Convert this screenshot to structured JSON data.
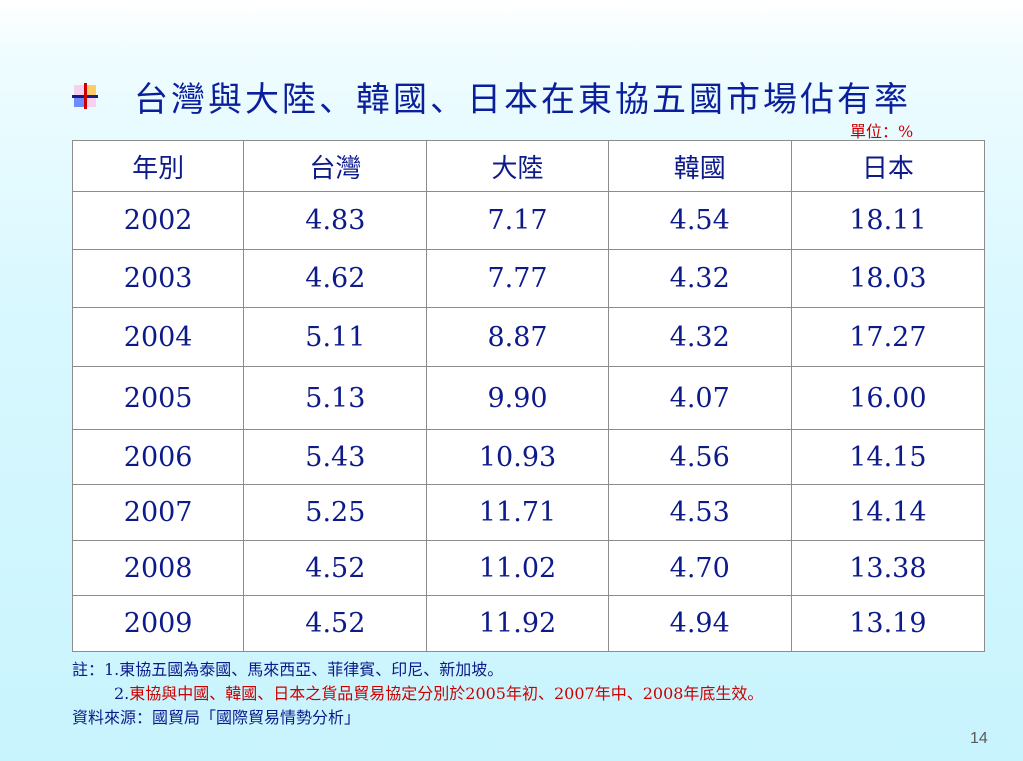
{
  "title": "台灣與大陸、韓國、日本在東協五國市場佔有率",
  "unit": "單位：%",
  "table": {
    "headers": [
      "年別",
      "台灣",
      "大陸",
      "韓國",
      "日本"
    ],
    "rows": [
      [
        "2002",
        "4.83",
        "7.17",
        "4.54",
        "18.11"
      ],
      [
        "2003",
        "4.62",
        "7.77",
        "4.32",
        "18.03"
      ],
      [
        "2004",
        "5.11",
        "8.87",
        "4.32",
        "17.27"
      ],
      [
        "2005",
        "5.13",
        "9.90",
        "4.07",
        "16.00"
      ],
      [
        "2006",
        "5.43",
        "10.93",
        "4.56",
        "14.15"
      ],
      [
        "2007",
        "5.25",
        "11.71",
        "4.53",
        "14.14"
      ],
      [
        "2008",
        "4.52",
        "11.02",
        "4.70",
        "13.38"
      ],
      [
        "2009",
        "4.52",
        "11.92",
        "4.94",
        "13.19"
      ]
    ]
  },
  "notes": {
    "note1": "註：1.東協五國為泰國、馬來西亞、菲律賓、印尼、新加坡。",
    "note2_num": "2.",
    "note2_text": "東協與中國、韓國、日本之貨品貿易協定分別於2005年初、2007年中、2008年底生效。",
    "source": "資料來源：國貿局「國際貿易情勢分析」"
  },
  "page_number": "14",
  "colors": {
    "text_blue": "#0d1a8a",
    "accent_red": "#cc0000"
  }
}
